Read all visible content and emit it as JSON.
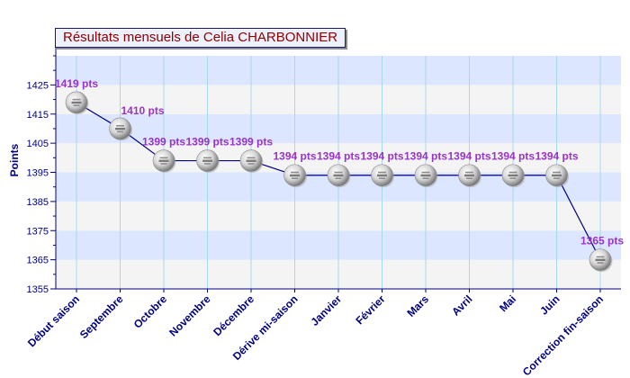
{
  "chart_data": {
    "type": "line",
    "title": "Résultats mensuels de Celia CHARBONNIER",
    "xlabel": "",
    "ylabel": "Points",
    "categories": [
      "Début saison",
      "Septembre",
      "Octobre",
      "Novembre",
      "Décembre",
      "Dérive mi-saison",
      "Janvier",
      "Février",
      "Mars",
      "Avril",
      "Mai",
      "Juin",
      "Correction fin-saison"
    ],
    "series": [
      {
        "values": [
          1419,
          1410,
          1399,
          1399,
          1399,
          1394,
          1394,
          1394,
          1394,
          1394,
          1394,
          1394,
          1365
        ]
      }
    ],
    "data_labels": [
      "1419 pts",
      "1410 pts",
      "1399 pts",
      "1399 pts",
      "1399 pts",
      "1394 pts",
      "1394 pts",
      "1394 pts",
      "1394 pts",
      "1394 pts",
      "1394 pts",
      "1394 pts",
      "1365 pts"
    ],
    "ylim": [
      1355,
      1435
    ],
    "yticks": [
      1355,
      1365,
      1375,
      1385,
      1395,
      1405,
      1415,
      1425
    ],
    "grid": true,
    "colors": {
      "line": "#000080",
      "label": "#9933cc",
      "axis_text": "#000080",
      "band_a": "#dde6ff",
      "band_b": "#f4f4f4",
      "vgrid": "#a8d8ea",
      "title_text": "#8b0000",
      "marker": "#d0d0d0"
    }
  }
}
